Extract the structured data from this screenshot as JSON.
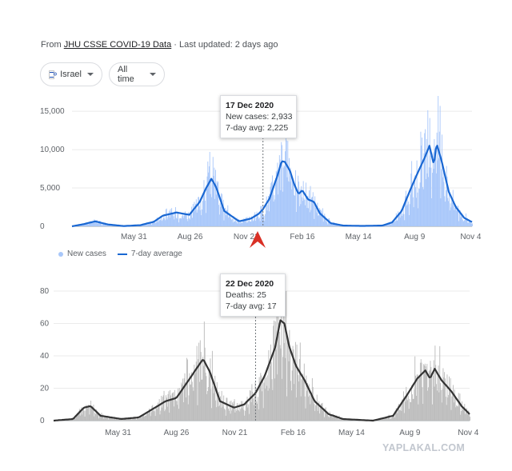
{
  "source": {
    "prefix": "From",
    "link_text": "JHU CSSE COVID-19 Data",
    "updated": "· Last updated: 2 days ago"
  },
  "filters": {
    "country": "Israel",
    "country_flag_icon": "israel-flag-icon",
    "range": "All time"
  },
  "colors": {
    "cases_bar": "#a8c7fa",
    "cases_line": "#1967d2",
    "deaths_bar": "#bdbdbd",
    "deaths_line": "#333333",
    "marker": "#d93025"
  },
  "legend": {
    "new_cases": "New cases",
    "avg": "7-day average"
  },
  "cases_tooltip": {
    "date": "17 Dec 2020",
    "line1": "New cases: 2,933",
    "line2": "7-day avg: 2,225"
  },
  "deaths_tooltip": {
    "date": "22 Dec 2020",
    "line1": "Deaths: 25",
    "line2": "7-day avg: 17"
  },
  "watermark": "YAPLAKAL.COM",
  "chart_data": [
    {
      "type": "area",
      "title": "",
      "xlabel": "",
      "ylabel": "",
      "x_ticks": [
        "May 31",
        "Aug 26",
        "Nov 21",
        "Feb 16",
        "May 14",
        "Aug 9",
        "Nov 4"
      ],
      "y_ticks": [
        "0",
        "5,000",
        "10,000",
        "15,000"
      ],
      "ylim": [
        0,
        17000
      ],
      "grid": true,
      "legend_position": "bottom-left",
      "series": [
        {
          "name": "New cases",
          "style": "bars"
        },
        {
          "name": "7-day average",
          "style": "line",
          "points": [
            [
              "2020-02-25",
              0
            ],
            [
              "2020-03-15",
              300
            ],
            [
              "2020-04-01",
              650
            ],
            [
              "2020-04-20",
              250
            ],
            [
              "2020-05-15",
              30
            ],
            [
              "2020-06-10",
              150
            ],
            [
              "2020-07-01",
              600
            ],
            [
              "2020-07-15",
              1400
            ],
            [
              "2020-08-05",
              1800
            ],
            [
              "2020-08-25",
              1500
            ],
            [
              "2020-09-10",
              3200
            ],
            [
              "2020-09-20",
              5000
            ],
            [
              "2020-09-28",
              6200
            ],
            [
              "2020-10-05",
              5200
            ],
            [
              "2020-10-18",
              2000
            ],
            [
              "2020-11-10",
              650
            ],
            [
              "2020-11-28",
              1000
            ],
            [
              "2020-12-10",
              1600
            ],
            [
              "2020-12-17",
              2225
            ],
            [
              "2020-12-27",
              3600
            ],
            [
              "2021-01-08",
              6500
            ],
            [
              "2021-01-15",
              8500
            ],
            [
              "2021-01-20",
              8400
            ],
            [
              "2021-01-28",
              7200
            ],
            [
              "2021-02-03",
              5600
            ],
            [
              "2021-02-10",
              4200
            ],
            [
              "2021-02-16",
              4700
            ],
            [
              "2021-02-25",
              3500
            ],
            [
              "2021-03-06",
              3200
            ],
            [
              "2021-03-15",
              1700
            ],
            [
              "2021-04-01",
              400
            ],
            [
              "2021-04-20",
              100
            ],
            [
              "2021-05-20",
              50
            ],
            [
              "2021-06-20",
              100
            ],
            [
              "2021-07-05",
              500
            ],
            [
              "2021-07-20",
              2000
            ],
            [
              "2021-08-01",
              4500
            ],
            [
              "2021-08-15",
              7200
            ],
            [
              "2021-08-25",
              9000
            ],
            [
              "2021-09-01",
              10500
            ],
            [
              "2021-09-08",
              8000
            ],
            [
              "2021-09-12",
              10800
            ],
            [
              "2021-09-20",
              8500
            ],
            [
              "2021-10-01",
              4500
            ],
            [
              "2021-10-12",
              2500
            ],
            [
              "2021-10-25",
              1100
            ],
            [
              "2021-11-06",
              550
            ]
          ]
        }
      ],
      "tooltip_date": "2020-12-17"
    },
    {
      "type": "area",
      "title": "",
      "xlabel": "",
      "ylabel": "",
      "x_ticks": [
        "May 31",
        "Aug 26",
        "Nov 21",
        "Feb 16",
        "May 14",
        "Aug 9",
        "Nov 4"
      ],
      "y_ticks": [
        "0",
        "20",
        "40",
        "60",
        "80"
      ],
      "ylim": [
        0,
        80
      ],
      "grid": true,
      "series": [
        {
          "name": "Deaths",
          "style": "bars"
        },
        {
          "name": "7-day average",
          "style": "line",
          "points": [
            [
              "2020-02-25",
              0
            ],
            [
              "2020-03-25",
              1
            ],
            [
              "2020-04-10",
              8
            ],
            [
              "2020-04-20",
              9
            ],
            [
              "2020-05-05",
              3
            ],
            [
              "2020-06-05",
              1
            ],
            [
              "2020-07-01",
              2
            ],
            [
              "2020-07-25",
              8
            ],
            [
              "2020-08-10",
              12
            ],
            [
              "2020-08-26",
              14
            ],
            [
              "2020-09-15",
              26
            ],
            [
              "2020-09-28",
              34
            ],
            [
              "2020-10-05",
              38
            ],
            [
              "2020-10-15",
              30
            ],
            [
              "2020-10-30",
              12
            ],
            [
              "2020-11-20",
              8
            ],
            [
              "2020-12-05",
              10
            ],
            [
              "2020-12-22",
              17
            ],
            [
              "2021-01-05",
              28
            ],
            [
              "2021-01-20",
              45
            ],
            [
              "2021-01-28",
              62
            ],
            [
              "2021-02-03",
              60
            ],
            [
              "2021-02-10",
              46
            ],
            [
              "2021-02-20",
              34
            ],
            [
              "2021-03-05",
              25
            ],
            [
              "2021-03-20",
              12
            ],
            [
              "2021-04-10",
              4
            ],
            [
              "2021-05-01",
              1
            ],
            [
              "2021-06-15",
              0
            ],
            [
              "2021-07-15",
              3
            ],
            [
              "2021-08-05",
              16
            ],
            [
              "2021-08-20",
              26
            ],
            [
              "2021-09-01",
              31
            ],
            [
              "2021-09-08",
              26
            ],
            [
              "2021-09-15",
              32
            ],
            [
              "2021-09-25",
              25
            ],
            [
              "2021-10-10",
              18
            ],
            [
              "2021-10-25",
              9
            ],
            [
              "2021-11-06",
              4
            ]
          ]
        }
      ],
      "tooltip_date": "2020-12-22"
    }
  ]
}
